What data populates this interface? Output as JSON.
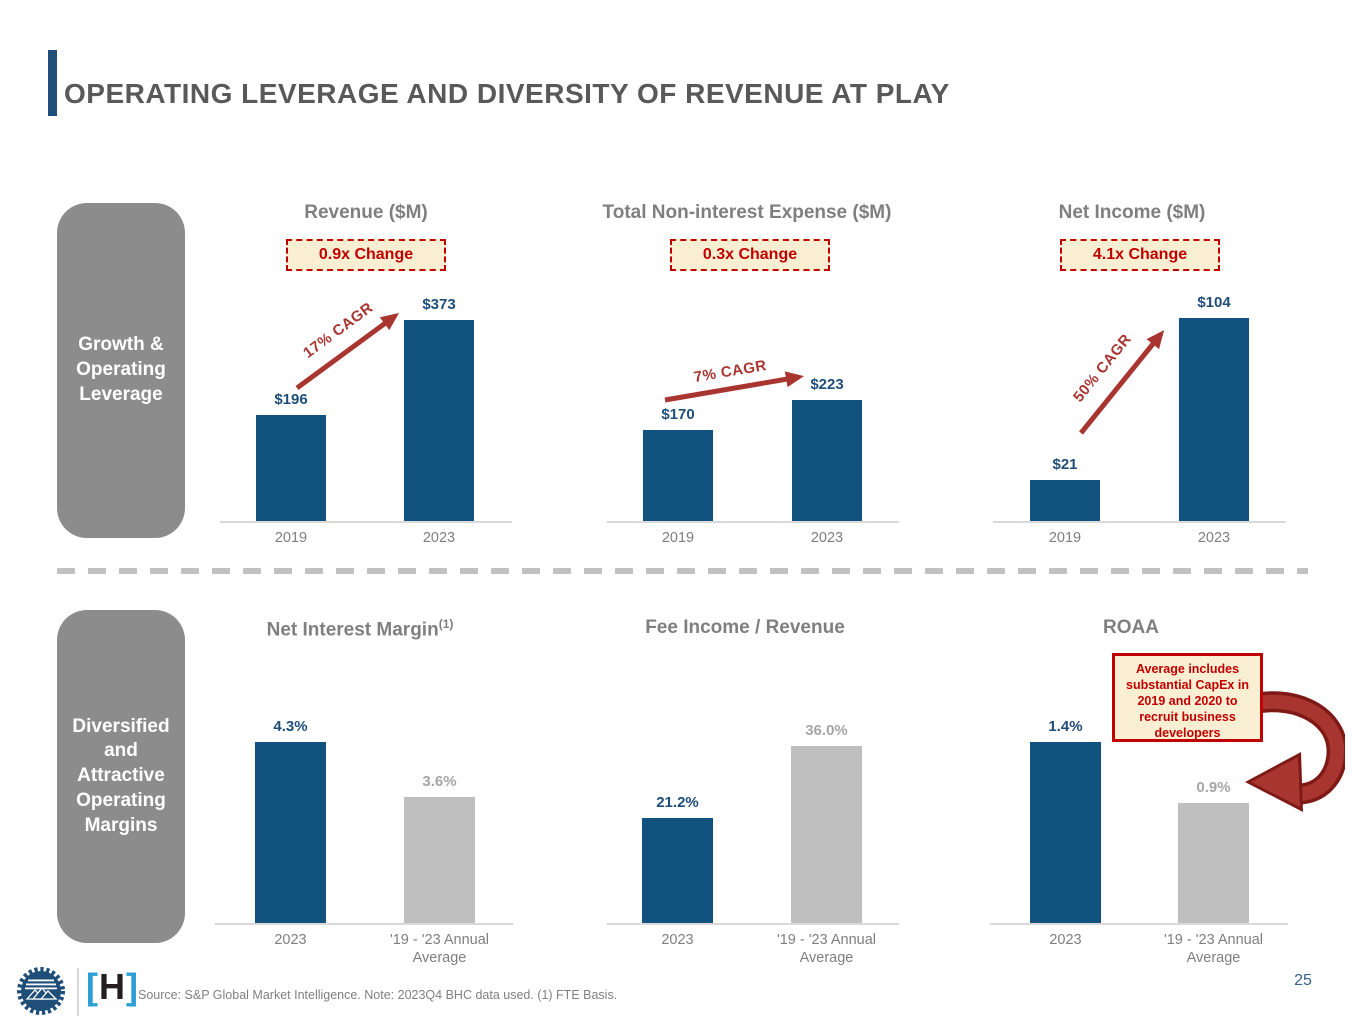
{
  "slide": {
    "title": "OPERATING LEVERAGE AND DIVERSITY OF REVENUE AT PLAY",
    "page_number": "25",
    "source_note": "Source: S&P Global Market Intelligence. Note: 2023Q4 BHC data used.  (1) FTE Basis."
  },
  "sidebars": [
    {
      "label": "Growth &\nOperating\nLeverage"
    },
    {
      "label": "Diversified\nand\nAttractive\nOperating\nMargins"
    }
  ],
  "logos": {
    "seal": "sunburst-mountain-seal",
    "h_open": "[",
    "h_letter": "H",
    "h_close": "]"
  },
  "colors": {
    "bar_blue": "#11527F",
    "bar_gray": "#BFBFBF",
    "navy_label": "#1F4E79",
    "gray_label": "#A6A6A6",
    "accent_red": "#C00000",
    "arrow_red": "#A93531",
    "cream": "#FBEFD3",
    "sidebar_gray": "#8C8C8C"
  },
  "chart_data": [
    {
      "type": "bar",
      "title": "Revenue ($M)",
      "badge": "0.9x Change",
      "cagr_label": "17% CAGR",
      "categories": [
        "2019",
        "2023"
      ],
      "values": [
        196,
        373
      ],
      "value_labels": [
        "$196",
        "$373"
      ],
      "unit": "$M",
      "bar_colors": [
        "blue",
        "blue"
      ],
      "grid": false,
      "legend": "none"
    },
    {
      "type": "bar",
      "title": "Total Non-interest Expense ($M)",
      "badge": "0.3x Change",
      "cagr_label": "7% CAGR",
      "categories": [
        "2019",
        "2023"
      ],
      "values": [
        170,
        223
      ],
      "value_labels": [
        "$170",
        "$223"
      ],
      "unit": "$M",
      "bar_colors": [
        "blue",
        "blue"
      ],
      "grid": false,
      "legend": "none"
    },
    {
      "type": "bar",
      "title": "Net Income ($M)",
      "badge": "4.1x Change",
      "cagr_label": "50% CAGR",
      "categories": [
        "2019",
        "2023"
      ],
      "values": [
        21,
        104
      ],
      "value_labels": [
        "$21",
        "$104"
      ],
      "unit": "$M",
      "bar_colors": [
        "blue",
        "blue"
      ],
      "grid": false,
      "legend": "none"
    },
    {
      "type": "bar",
      "title": "Net Interest Margin",
      "title_sup": "(1)",
      "categories": [
        "2023",
        "'19 - '23 Annual\nAverage"
      ],
      "values": [
        4.3,
        3.6
      ],
      "value_labels": [
        "4.3%",
        "3.6%"
      ],
      "unit": "%",
      "bar_colors": [
        "blue",
        "gray"
      ],
      "grid": false,
      "legend": "none"
    },
    {
      "type": "bar",
      "title": "Fee Income / Revenue",
      "categories": [
        "2023",
        "'19 - '23 Annual\nAverage"
      ],
      "values": [
        21.2,
        36.0
      ],
      "value_labels": [
        "21.2%",
        "36.0%"
      ],
      "unit": "%",
      "bar_colors": [
        "blue",
        "gray"
      ],
      "grid": false,
      "legend": "none"
    },
    {
      "type": "bar",
      "title": "ROAA",
      "categories": [
        "2023",
        "'19 - '23 Annual\nAverage"
      ],
      "values": [
        1.4,
        0.9
      ],
      "value_labels": [
        "1.4%",
        "0.9%"
      ],
      "unit": "%",
      "bar_colors": [
        "blue",
        "gray"
      ],
      "callout": "Average includes substantial CapEx in 2019 and 2020 to recruit business developers",
      "grid": false,
      "legend": "none"
    }
  ]
}
